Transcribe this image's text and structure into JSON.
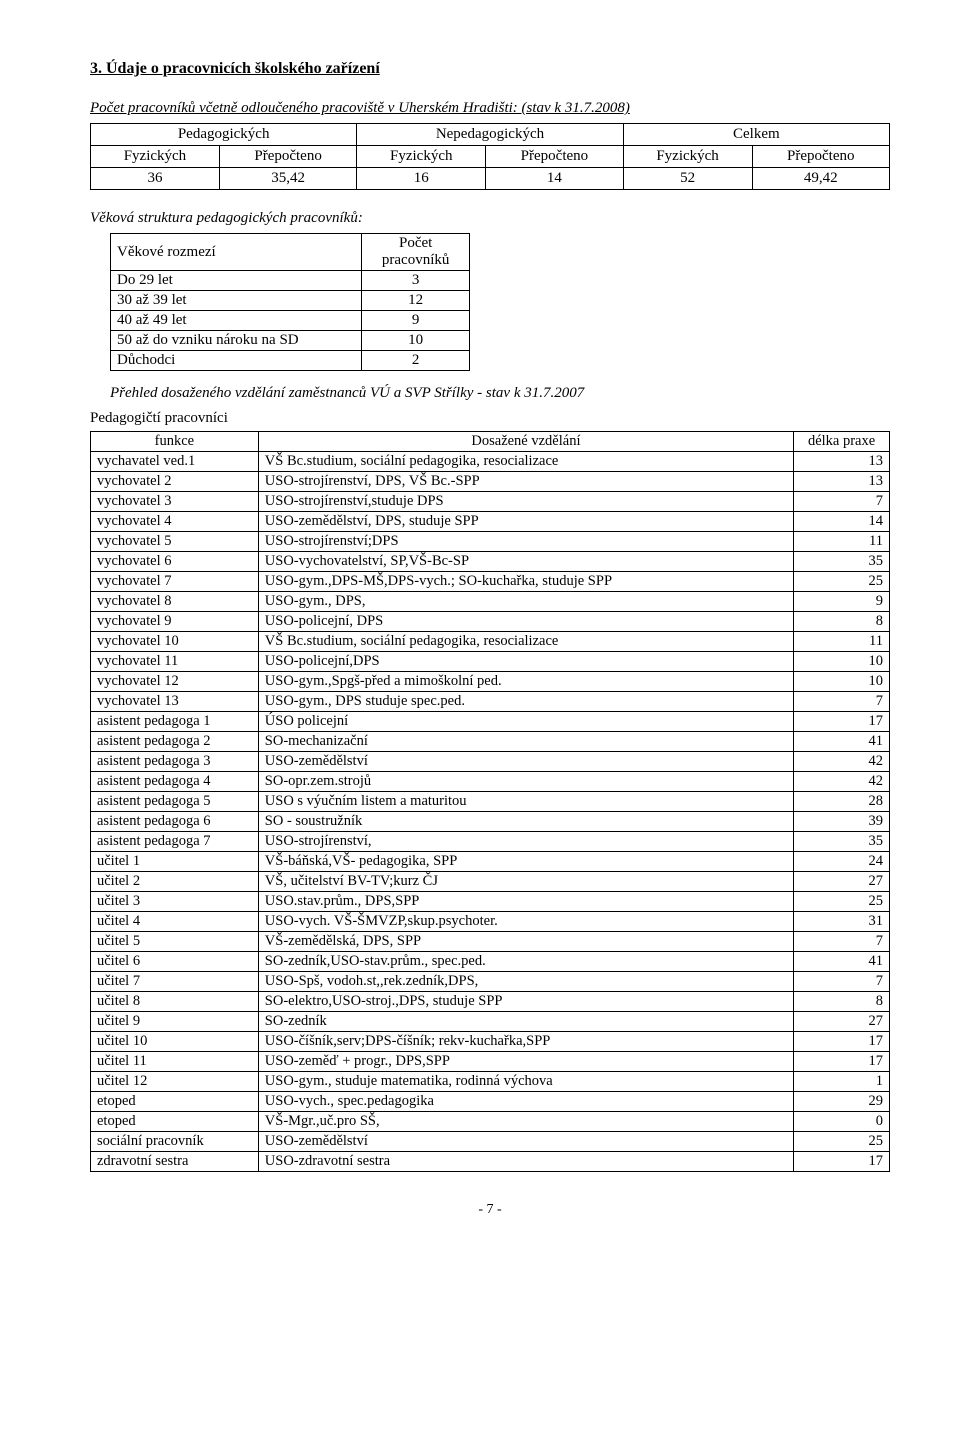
{
  "section_title": "3.   Údaje o pracovnicích  školského zařízení",
  "intro": "Počet pracovníků včetně odloučeného pracoviště v Uherském Hradišti: (stav k 31.7.2008)",
  "table1": {
    "head1": [
      "Pedagogických",
      "Nepedagogických",
      "Celkem"
    ],
    "head2": [
      "Fyzických",
      "Přepočteno",
      "Fyzických",
      "Přepočteno",
      "Fyzických",
      "Přepočteno"
    ],
    "row": [
      "36",
      "35,42",
      "16",
      "14",
      "52",
      "49,42"
    ]
  },
  "age_heading": "Věková struktura pedagogických pracovníků:",
  "table2": {
    "head": [
      "Věkové rozmezí",
      "Počet pracovníků"
    ],
    "rows": [
      [
        "Do 29 let",
        "3"
      ],
      [
        "30 až 39 let",
        "12"
      ],
      [
        "40 až 49 let",
        "9"
      ],
      [
        "50 až do vzniku nároku na SD",
        "10"
      ],
      [
        "Důchodci",
        "2"
      ]
    ]
  },
  "overview_heading": "Přehled dosaženého vzdělání zaměstnanců VÚ a SVP Střílky - stav k 31.7.2007",
  "pedag_label": "Pedagogičtí pracovníci",
  "table3": {
    "head": [
      "funkce",
      "Dosažené vzdělání",
      "délka praxe"
    ],
    "rows": [
      [
        "vychavatel ved.1",
        "VŠ Bc.studium, sociální pedagogika, resocializace",
        "13"
      ],
      [
        "vychovatel 2",
        "USO-strojírenství, DPS, VŠ Bc.-SPP",
        "13"
      ],
      [
        "vychovatel 3",
        "USO-strojírenství,studuje DPS",
        "7"
      ],
      [
        "vychovatel 4",
        "USO-zemědělství, DPS, studuje SPP",
        "14"
      ],
      [
        "vychovatel 5",
        "USO-strojírenství;DPS",
        "11"
      ],
      [
        "vychovatel 6",
        "USO-vychovatelství, SP,VŠ-Bc-SP",
        "35"
      ],
      [
        "vychovatel 7",
        "USO-gym.,DPS-MŠ,DPS-vych.; SO-kuchařka, studuje SPP",
        "25"
      ],
      [
        "vychovatel 8",
        "USO-gym., DPS,",
        "9"
      ],
      [
        "vychovatel 9",
        "USO-policejní, DPS",
        "8"
      ],
      [
        "vychovatel 10",
        "VŠ Bc.studium, sociální pedagogika, resocializace",
        "11"
      ],
      [
        "vychovatel 11",
        "USO-policejní,DPS",
        "10"
      ],
      [
        "vychovatel 12",
        "USO-gym.,Spgš-před a mimoškolní ped.",
        "10"
      ],
      [
        "vychovatel 13",
        "USO-gym., DPS studuje spec.ped.",
        "7"
      ],
      [
        "asistent pedagoga 1",
        "ÚSO policejní",
        "17"
      ],
      [
        "asistent pedagoga 2",
        "SO-mechanizační",
        "41"
      ],
      [
        "asistent pedagoga 3",
        "USO-zemědělství",
        "42"
      ],
      [
        "asistent pedagoga 4",
        "SO-opr.zem.strojů",
        "42"
      ],
      [
        "asistent pedagoga 5",
        "USO s výučním listem a maturitou",
        "28"
      ],
      [
        "asistent pedagoga 6",
        "SO - soustružník",
        "39"
      ],
      [
        "asistent pedagoga 7",
        "USO-strojírenství,",
        "35"
      ],
      [
        "učitel 1",
        "VŠ-báňská,VŠ- pedagogika, SPP",
        "24"
      ],
      [
        "učitel 2",
        "VŠ, učitelství BV-TV;kurz ČJ",
        "27"
      ],
      [
        "učitel 3",
        "USO.stav.prům., DPS,SPP",
        "25"
      ],
      [
        "učitel 4",
        "USO-vych. VŠ-ŠMVZP,skup.psychoter.",
        "31"
      ],
      [
        "učitel 5",
        "VŠ-zemědělská, DPS, SPP",
        "7"
      ],
      [
        "učitel 6",
        "SO-zedník,USO-stav.prům., spec.ped.",
        "41"
      ],
      [
        "učitel 7",
        "USO-Spš, vodoh.st,,rek.zedník,DPS,",
        "7"
      ],
      [
        "učitel 8",
        "SO-elektro,USO-stroj.,DPS, studuje SPP",
        "8"
      ],
      [
        "učitel 9",
        "SO-zedník",
        "27"
      ],
      [
        "učitel 10",
        "USO-číšník,serv;DPS-číšník; rekv-kuchařka,SPP",
        "17"
      ],
      [
        "učitel 11",
        "USO-zeměď + progr.,  DPS,SPP",
        "17"
      ],
      [
        "učitel 12",
        "USO-gym., studuje matematika, rodinná výchova",
        "1"
      ],
      [
        "etoped",
        "USO-vych., spec.pedagogika",
        "29"
      ],
      [
        "etoped",
        "VŠ-Mgr.,uč.pro SŠ,",
        "0"
      ],
      [
        "sociální pracovník",
        "USO-zemědělství",
        "25"
      ],
      [
        "zdravotní sestra",
        "USO-zdravotní sestra",
        "17"
      ]
    ]
  },
  "pagenum": "- 7 -"
}
